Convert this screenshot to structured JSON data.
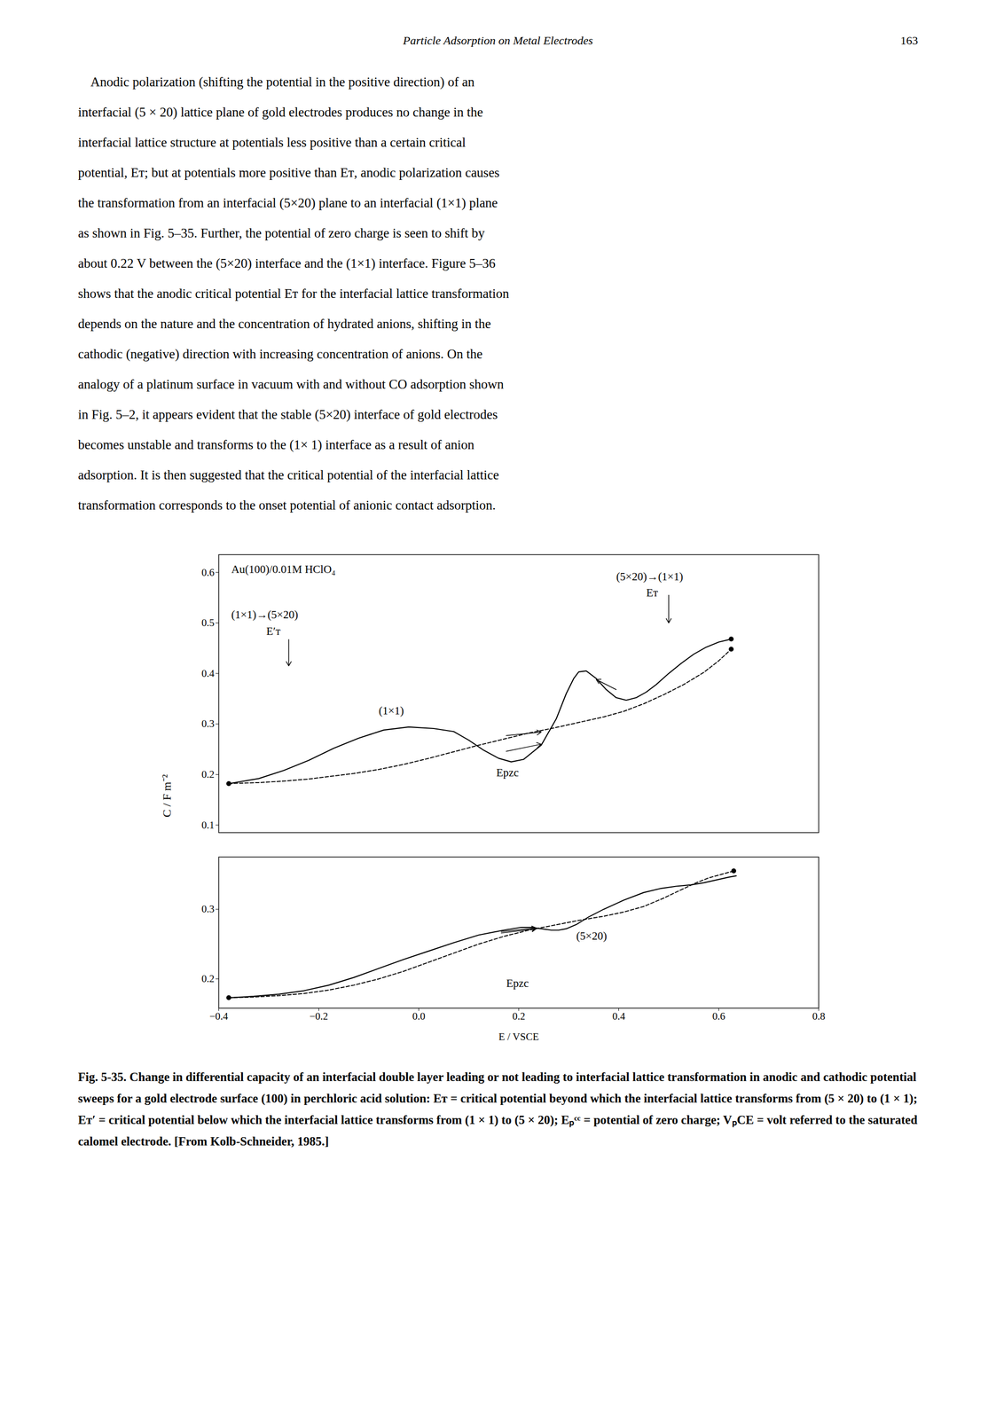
{
  "header_text": "Particle Adsorption on Metal Electrodes",
  "header_page": "163",
  "body_lines": [
    "    Anodic polarization (shifting the potential in the positive direction) of an",
    "interfacial (5 × 20) lattice plane of gold electrodes produces no change in the",
    "interfacial lattice structure at potentials less positive than a certain critical",
    "potential, Eᴛ; but at potentials more positive than Eᴛ, anodic polarization causes",
    "the transformation from an interfacial (5×20) plane to an interfacial (1×1) plane",
    "as shown in Fig. 5–35. Further, the potential of zero charge is seen to shift by",
    "about 0.22 V between the (5×20) interface and the (1×1) interface. Figure 5–36",
    "shows that the anodic critical potential Eᴛ for the interfacial lattice transformation",
    "depends on the nature and the concentration of hydrated anions, shifting in the",
    "cathodic (negative) direction with increasing concentration of anions. On the",
    "analogy of a platinum surface in vacuum with and without CO adsorption shown",
    "in Fig. 5–2, it appears evident that the stable (5×20) interface of gold electrodes",
    "becomes unstable and transforms to the (1× 1) interface as a result of anion",
    "adsorption. It is then suggested that the critical potential of the interfacial lattice",
    "transformation corresponds to the onset potential of anionic contact adsorption."
  ],
  "caption_bold_part": "Fig. 5-35.",
  "caption_rest": " Change in differential capacity of an interfacial double layer leading or not leading to interfacial lattice transformation in anodic and cathodic potential sweeps for a gold electrode surface (100) in perchloric acid solution: Eᴛ = critical potential beyond which the interfacial lattice transforms from (5 × 20) to (1 × 1); Eᴛ′ = critical potential below which the interfacial lattice transforms from (1 × 1) to (5 × 20); Eₚᶜᶜ = potential of zero charge; VₚCE = volt referred to the saturated calomel electrode. [From Kolb-Schneider, 1985.]",
  "chart_data": [
    {
      "type": "line",
      "ylabel": "C / F m⁻²",
      "xlim": [
        -0.4,
        0.8
      ],
      "ylim": [
        0.085,
        0.635
      ],
      "yticks": [
        0.1,
        0.2,
        0.3,
        0.4,
        0.5,
        0.6
      ],
      "tick_labels": "y",
      "series": [
        {
          "color": "#000000",
          "line_style": "solid",
          "x": [
            -0.38,
            -0.32,
            -0.27,
            -0.22,
            -0.17,
            -0.12,
            -0.07,
            -0.02,
            0.03,
            0.07,
            0.1,
            0.13,
            0.16,
            0.185,
            0.21,
            0.245,
            0.275,
            0.295,
            0.31,
            0.32,
            0.335,
            0.355,
            0.375,
            0.395,
            0.415,
            0.435,
            0.455,
            0.475,
            0.5,
            0.525,
            0.55,
            0.575,
            0.6,
            0.625
          ],
          "values": [
            0.182,
            0.192,
            0.208,
            0.228,
            0.252,
            0.272,
            0.288,
            0.294,
            0.291,
            0.285,
            0.268,
            0.248,
            0.232,
            0.225,
            0.23,
            0.258,
            0.31,
            0.36,
            0.39,
            0.403,
            0.405,
            0.39,
            0.368,
            0.352,
            0.347,
            0.352,
            0.363,
            0.378,
            0.4,
            0.42,
            0.438,
            0.452,
            0.462,
            0.468
          ]
        },
        {
          "color": "#000000",
          "line_style": "dashed",
          "x": [
            -0.38,
            -0.32,
            -0.27,
            -0.22,
            -0.18,
            -0.13,
            -0.08,
            -0.03,
            0.02,
            0.07,
            0.12,
            0.17,
            0.22,
            0.27,
            0.32,
            0.37,
            0.41,
            0.45,
            0.49,
            0.53,
            0.57,
            0.6,
            0.625
          ],
          "values": [
            0.182,
            0.184,
            0.187,
            0.191,
            0.196,
            0.202,
            0.21,
            0.22,
            0.232,
            0.245,
            0.258,
            0.27,
            0.282,
            0.292,
            0.303,
            0.314,
            0.325,
            0.34,
            0.358,
            0.378,
            0.402,
            0.425,
            0.448
          ]
        }
      ],
      "end_points": [
        {
          "x": -0.38,
          "y": 0.182
        },
        {
          "x": 0.625,
          "y": 0.468
        },
        {
          "x": 0.625,
          "y": 0.448
        }
      ],
      "arrows": [
        {
          "x1": 0.175,
          "y1": 0.246,
          "x2": 0.245,
          "y2": 0.26
        },
        {
          "x1": 0.395,
          "y1": 0.368,
          "x2": 0.355,
          "y2": 0.388
        },
        {
          "x1": 0.175,
          "y1": 0.277,
          "x2": 0.245,
          "y2": 0.284
        },
        {
          "x1": 0.5,
          "y1": 0.555,
          "x2": 0.5,
          "y2": 0.5
        },
        {
          "x1": -0.26,
          "y1": 0.467,
          "x2": -0.26,
          "y2": 0.415
        }
      ],
      "annotations": [
        {
          "text": "Au(100)/0.01M HClO₄",
          "x": -0.375,
          "y": 0.615
        },
        {
          "text": "(5×20)→(1×1)",
          "x": 0.395,
          "y": 0.6
        },
        {
          "text": "Eᴛ",
          "x": 0.455,
          "y": 0.568
        },
        {
          "text": "(1×1)→(5×20)",
          "x": -0.375,
          "y": 0.525
        },
        {
          "text": "E′ᴛ",
          "x": -0.305,
          "y": 0.492
        },
        {
          "text": "(1×1)",
          "x": -0.08,
          "y": 0.335
        },
        {
          "text": "Epzc",
          "x": 0.155,
          "y": 0.212
        }
      ]
    },
    {
      "type": "line",
      "xlabel": "E / VSCE",
      "xlim": [
        -0.4,
        0.8
      ],
      "xticks": [
        {
          "value": -0.4,
          "label": "−0.4"
        },
        {
          "value": -0.2,
          "label": "−0.2"
        },
        {
          "value": 0.0,
          "label": "0.0"
        },
        0.2,
        0.4,
        0.6,
        0.8
      ],
      "ylim": [
        0.158,
        0.375
      ],
      "yticks": [
        0.2,
        0.3
      ],
      "series": [
        {
          "color": "#000000",
          "line_style": "solid",
          "x": [
            -0.38,
            -0.33,
            -0.28,
            -0.23,
            -0.18,
            -0.13,
            -0.08,
            -0.03,
            0.02,
            0.07,
            0.12,
            0.17,
            0.205,
            0.225,
            0.245,
            0.265,
            0.28,
            0.295,
            0.315,
            0.34,
            0.37,
            0.41,
            0.45,
            0.485,
            0.515,
            0.545,
            0.57,
            0.595,
            0.62,
            0.635
          ],
          "values": [
            0.173,
            0.175,
            0.178,
            0.183,
            0.191,
            0.202,
            0.215,
            0.228,
            0.24,
            0.252,
            0.263,
            0.27,
            0.274,
            0.274,
            0.272,
            0.27,
            0.27,
            0.272,
            0.278,
            0.289,
            0.3,
            0.313,
            0.324,
            0.33,
            0.333,
            0.335,
            0.338,
            0.342,
            0.346,
            0.348
          ]
        },
        {
          "color": "#000000",
          "line_style": "dashed",
          "x": [
            -0.38,
            -0.33,
            -0.28,
            -0.23,
            -0.18,
            -0.13,
            -0.08,
            -0.03,
            0.02,
            0.07,
            0.12,
            0.17,
            0.22,
            0.27,
            0.32,
            0.37,
            0.41,
            0.45,
            0.49,
            0.525,
            0.555,
            0.58,
            0.605,
            0.63
          ],
          "values": [
            0.173,
            0.174,
            0.176,
            0.179,
            0.184,
            0.191,
            0.2,
            0.211,
            0.224,
            0.237,
            0.25,
            0.261,
            0.27,
            0.277,
            0.284,
            0.29,
            0.296,
            0.304,
            0.316,
            0.328,
            0.338,
            0.345,
            0.35,
            0.355
          ]
        }
      ],
      "end_points": [
        {
          "x": -0.38,
          "y": 0.173
        },
        {
          "x": 0.63,
          "y": 0.355
        }
      ],
      "arrows": [
        {
          "x1": 0.165,
          "y1": 0.268,
          "x2": 0.235,
          "y2": 0.273
        },
        {
          "x1": 0.165,
          "y1": 0.266,
          "x2": 0.235,
          "y2": 0.272
        }
      ],
      "annotations": [
        {
          "text": "(5×20)",
          "x": 0.315,
          "y": 0.268
        },
        {
          "text": "Epzc",
          "x": 0.175,
          "y": 0.2
        }
      ]
    }
  ]
}
